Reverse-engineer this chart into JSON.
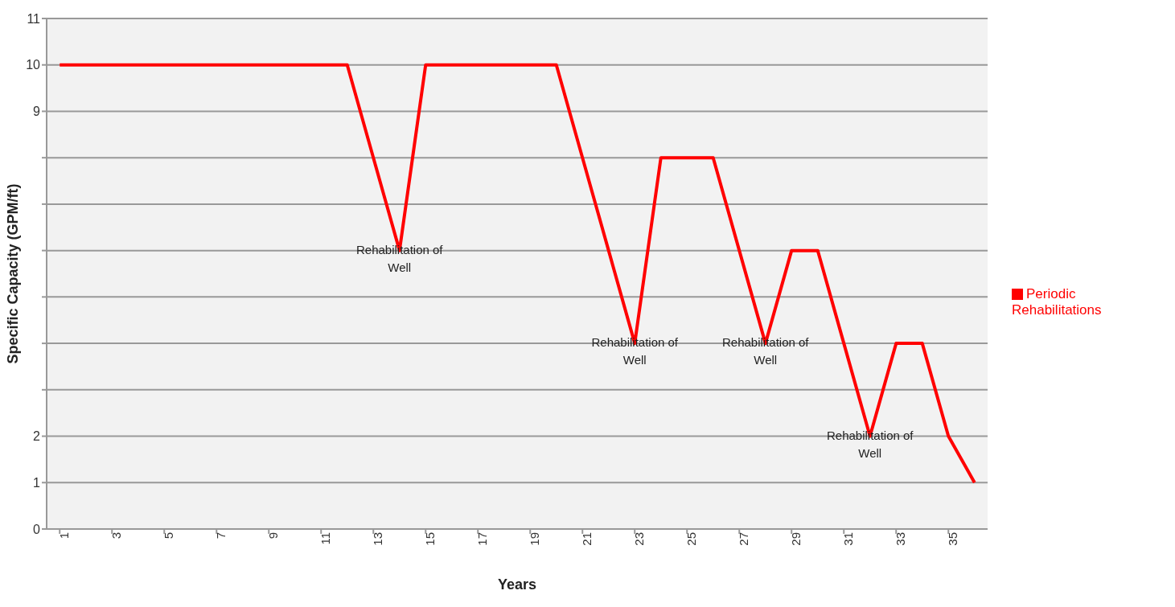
{
  "chart_data": {
    "type": "line",
    "xlabel": "Years",
    "ylabel": "Specific Capacity (GPM/ft)",
    "x": [
      1,
      2,
      3,
      4,
      5,
      6,
      7,
      8,
      9,
      10,
      11,
      12,
      13,
      14,
      15,
      16,
      17,
      18,
      19,
      20,
      21,
      22,
      23,
      24,
      25,
      26,
      27,
      28,
      29,
      30,
      31,
      32,
      33,
      34,
      35,
      36
    ],
    "series": [
      {
        "name": "Periodic Rehabilitations",
        "color": "#ff0000",
        "values": [
          10,
          10,
          10,
          10,
          10,
          10,
          10,
          10,
          10,
          10,
          10,
          10,
          8,
          6,
          10,
          10,
          10,
          10,
          10,
          10,
          8,
          6,
          4,
          8,
          8,
          8,
          6,
          4,
          6,
          6,
          4,
          2,
          4,
          4,
          2,
          1
        ]
      }
    ],
    "xlim": [
      0.5,
      36.5
    ],
    "xticks": [
      1,
      3,
      5,
      7,
      9,
      11,
      13,
      15,
      17,
      19,
      21,
      23,
      25,
      27,
      29,
      31,
      33,
      35
    ],
    "ylim": [
      0,
      11
    ],
    "yticks": [
      0,
      1,
      2,
      {
        "value": 3,
        "label": null
      },
      {
        "value": 4,
        "label": null
      },
      {
        "value": 5,
        "label": null
      },
      {
        "value": 6,
        "label": null
      },
      {
        "value": 7,
        "label": null
      },
      {
        "value": 8,
        "label": null
      },
      9,
      10,
      11
    ],
    "grid": "y",
    "legend": "right",
    "marker": "none",
    "line_style": "solid",
    "annotations": [
      {
        "text": "Rehabilitation of Well",
        "x": 14,
        "y": 6
      },
      {
        "text": "Rehabilitation of Well",
        "x": 23,
        "y": 4
      },
      {
        "text": "Rehabilitation of Well",
        "x": 28,
        "y": 4
      },
      {
        "text": "Rehabilitation of Well",
        "x": 32,
        "y": 2
      }
    ]
  }
}
